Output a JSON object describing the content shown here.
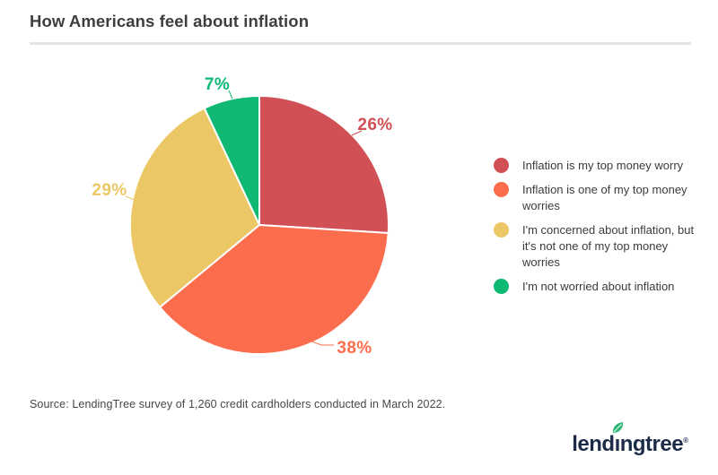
{
  "header": {
    "title": "How Americans feel about inflation"
  },
  "chart_data": {
    "type": "pie",
    "title": "How Americans feel about inflation",
    "direction": "clockwise",
    "start_angle_deg": 0,
    "legend_position": "right",
    "slices": [
      {
        "label": "Inflation is my top money worry",
        "value": 26,
        "display": "26%",
        "color": "#d05056"
      },
      {
        "label": "Inflation is one of my top money worries",
        "value": 38,
        "display": "38%",
        "color": "#fb6d4d"
      },
      {
        "label": "I'm concerned about inflation, but it's not one of my top money worries",
        "value": 29,
        "display": "29%",
        "color": "#ebc765"
      },
      {
        "label": "I'm not worried about inflation",
        "value": 7,
        "display": "7%",
        "color": "#0fb873"
      }
    ]
  },
  "source": {
    "text": "Source: LendingTree survey of 1,260 credit cardholders conducted in March 2022."
  },
  "footer": {
    "brand": "lendingtree",
    "registered_mark": "®",
    "brand_color": "#1d2b49",
    "leaf_color": "#2cb673"
  }
}
